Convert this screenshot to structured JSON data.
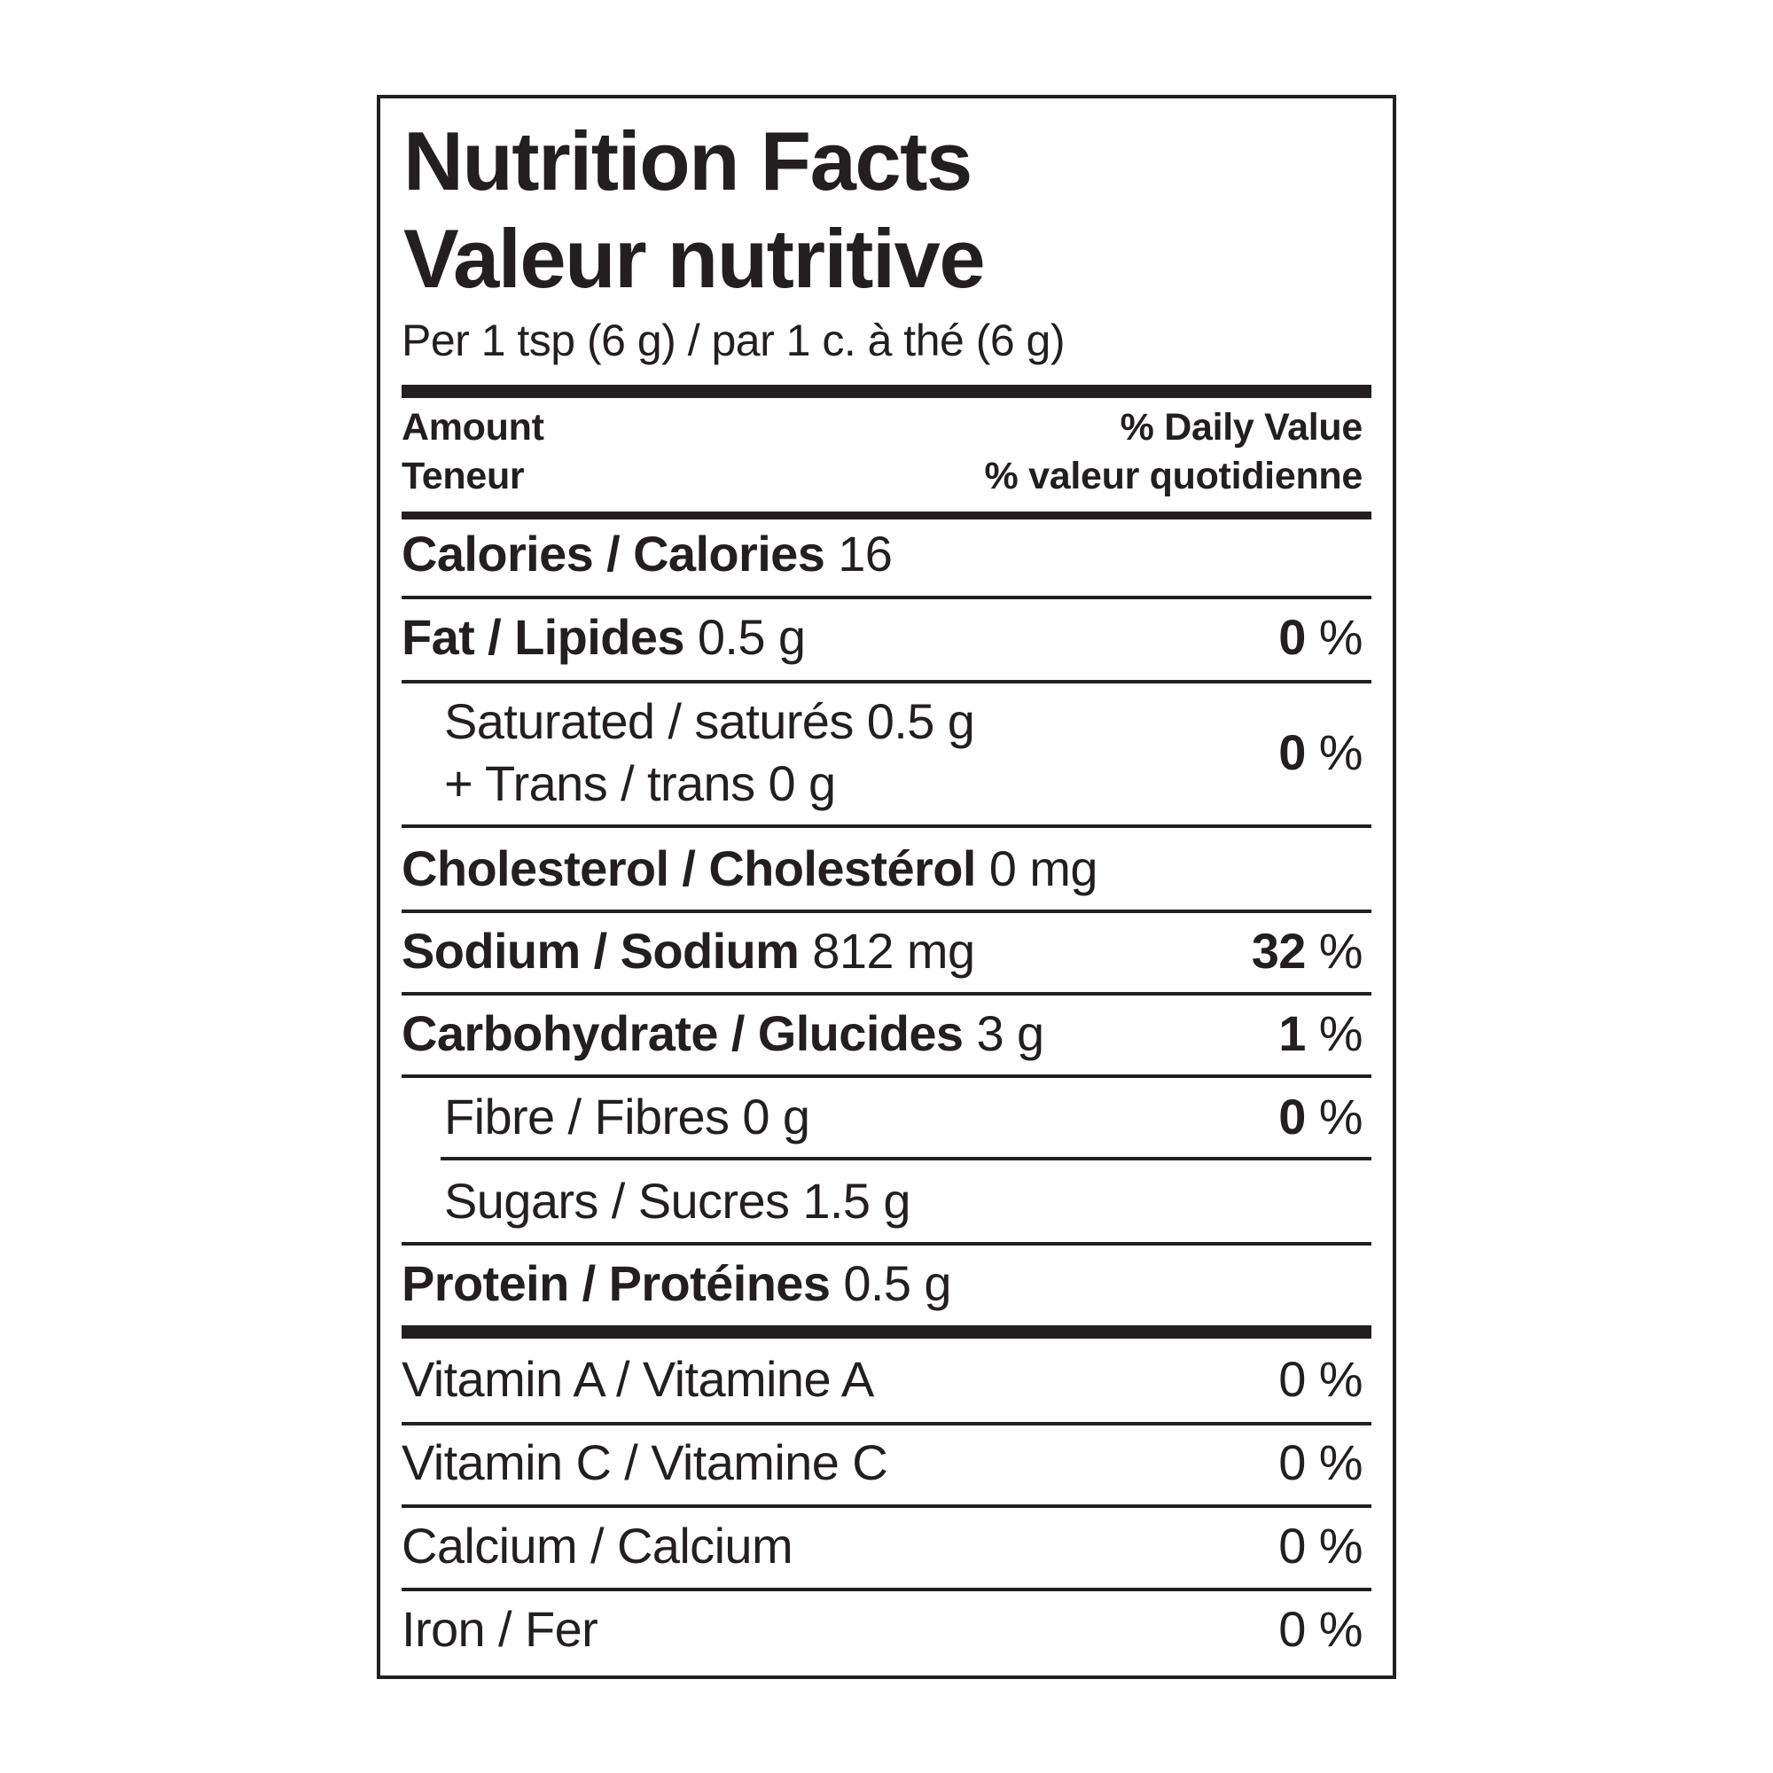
{
  "header": {
    "title_en": "Nutrition Facts",
    "title_fr": "Valeur nutritive",
    "serving": "Per 1 tsp (6 g) / par 1 c. à thé (6 g)",
    "amount_en": "Amount",
    "amount_fr": "Teneur",
    "dv_en": "% Daily Value",
    "dv_fr": "% valeur quotidienne"
  },
  "nutrients": [
    {
      "name": "Calories / Calories",
      "amount": "16"
    },
    {
      "name": "Fat / Lipides",
      "amount": "0.5 g",
      "dv": "0",
      "dv_unit": "%"
    },
    {
      "lines": [
        "Saturated / saturés 0.5 g",
        "+ Trans / trans 0 g"
      ],
      "dv": "0",
      "dv_unit": "%"
    },
    {
      "name": "Cholesterol / Cholestérol",
      "amount": "0 mg"
    },
    {
      "name": "Sodium / Sodium",
      "amount": "812 mg",
      "dv": "32",
      "dv_unit": "%"
    },
    {
      "name": "Carbohydrate / Glucides",
      "amount": "3 g",
      "dv": "1",
      "dv_unit": "%"
    },
    {
      "sub": "Fibre / Fibres 0 g",
      "dv": "0",
      "dv_unit": "%"
    },
    {
      "sub": "Sugars / Sucres 1.5 g"
    },
    {
      "name": "Protein / Protéines",
      "amount": "0.5 g"
    }
  ],
  "vitamins": [
    {
      "name": "Vitamin A / Vitamine A",
      "dv": "0",
      "dv_unit": "%"
    },
    {
      "name": "Vitamin C / Vitamine C",
      "dv": "0",
      "dv_unit": "%"
    },
    {
      "name": "Calcium / Calcium",
      "dv": "0",
      "dv_unit": "%"
    },
    {
      "name": "Iron / Fer",
      "dv": "0",
      "dv_unit": "%"
    }
  ]
}
